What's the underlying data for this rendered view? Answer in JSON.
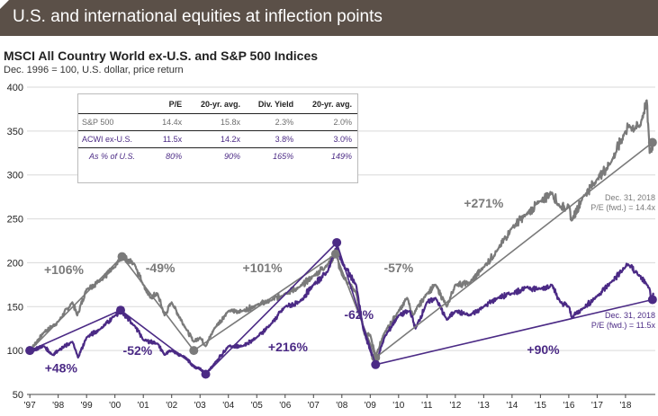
{
  "header": {
    "title": "U.S. and international equities at inflection points"
  },
  "chart_data": {
    "type": "line",
    "title": "MSCI All Country World ex-U.S. and S&P 500 Indices",
    "subtitle": "Dec. 1996 = 100, U.S. dollar, price return",
    "x_ticks": [
      "'97",
      "'98",
      "'99",
      "'00",
      "'01",
      "'02",
      "'03",
      "'04",
      "'05",
      "'06",
      "'07",
      "'08",
      "'09",
      "'10",
      "'11",
      "'12",
      "'13",
      "'14",
      "'15",
      "'16",
      "'17",
      "'18"
    ],
    "xlim": [
      1996.9,
      2019.05
    ],
    "ylim": [
      50,
      400
    ],
    "y_ticks": [
      50,
      100,
      150,
      200,
      250,
      300,
      350,
      400
    ],
    "grid": true,
    "colors": {
      "sp500": "#7a7a7a",
      "acwi": "#4b2a85",
      "header_bg": "#5b5048"
    },
    "series": [
      {
        "key": "sp500",
        "x": [
          1997.0,
          1997.5,
          1997.8,
          1998.0,
          1998.5,
          1998.67,
          1999.0,
          1999.5,
          2000.0,
          2000.25,
          2000.7,
          2001.0,
          2001.25,
          2001.5,
          2001.75,
          2002.0,
          2002.5,
          2002.78,
          2003.0,
          2003.2,
          2003.5,
          2004.0,
          2004.5,
          2005.0,
          2005.5,
          2006.0,
          2006.5,
          2007.0,
          2007.5,
          2007.78,
          2008.0,
          2008.5,
          2008.8,
          2009.0,
          2009.19,
          2009.5,
          2010.0,
          2010.3,
          2010.5,
          2011.0,
          2011.3,
          2011.7,
          2012.0,
          2012.5,
          2013.0,
          2013.5,
          2014.0,
          2014.5,
          2015.0,
          2015.4,
          2015.7,
          2016.0,
          2016.1,
          2016.5,
          2017.0,
          2017.5,
          2018.0,
          2018.1,
          2018.5,
          2018.75,
          2018.85,
          2019.0
        ],
        "values": [
          100,
          121,
          128,
          133,
          155,
          140,
          170,
          180,
          195,
          207,
          198,
          175,
          160,
          165,
          140,
          155,
          125,
          110,
          115,
          105,
          125,
          145,
          145,
          152,
          157,
          165,
          172,
          185,
          198,
          210,
          186,
          166,
          118,
          118,
          94,
          120,
          145,
          160,
          140,
          165,
          175,
          150,
          175,
          177,
          195,
          215,
          240,
          255,
          270,
          280,
          263,
          265,
          248,
          275,
          295,
          315,
          350,
          355,
          355,
          385,
          325,
          338
        ]
      },
      {
        "key": "acwi",
        "x": [
          1997.0,
          1997.5,
          1997.8,
          1998.0,
          1998.5,
          1998.7,
          1999.0,
          1999.5,
          2000.0,
          2000.2,
          2000.7,
          2001.0,
          2001.5,
          2001.75,
          2002.0,
          2002.5,
          2002.75,
          2003.0,
          2003.2,
          2003.5,
          2004.0,
          2004.5,
          2005.0,
          2005.5,
          2006.0,
          2006.5,
          2007.0,
          2007.5,
          2007.82,
          2008.0,
          2008.5,
          2008.75,
          2009.0,
          2009.19,
          2009.5,
          2010.0,
          2010.4,
          2010.6,
          2011.0,
          2011.3,
          2011.7,
          2012.0,
          2012.5,
          2013.0,
          2013.5,
          2014.0,
          2014.5,
          2015.0,
          2015.4,
          2015.7,
          2016.0,
          2016.1,
          2016.5,
          2017.0,
          2017.5,
          2018.0,
          2018.1,
          2018.5,
          2018.75,
          2018.95,
          2019.0
        ],
        "values": [
          100,
          105,
          95,
          100,
          110,
          92,
          115,
          125,
          140,
          145,
          128,
          112,
          108,
          95,
          100,
          92,
          82,
          80,
          72,
          85,
          105,
          105,
          115,
          130,
          150,
          155,
          175,
          190,
          218,
          200,
          175,
          125,
          100,
          84,
          115,
          140,
          145,
          125,
          155,
          160,
          135,
          145,
          140,
          150,
          160,
          165,
          172,
          170,
          175,
          155,
          150,
          138,
          148,
          162,
          178,
          195,
          198,
          185,
          175,
          160,
          163
        ]
      }
    ],
    "trend_lines": {
      "sp500": [
        [
          1997.0,
          100
        ],
        [
          2000.25,
          207
        ],
        [
          2002.78,
          100
        ],
        [
          2007.78,
          210
        ],
        [
          2009.19,
          92
        ],
        [
          2018.95,
          337
        ]
      ],
      "acwi": [
        [
          1997.0,
          100
        ],
        [
          2000.2,
          146
        ],
        [
          2003.2,
          73
        ],
        [
          2007.82,
          223
        ],
        [
          2009.19,
          84
        ],
        [
          2018.95,
          158
        ]
      ]
    },
    "annotations": [
      {
        "text": "+106%",
        "x": 1998.2,
        "y": 187,
        "series": "sp500"
      },
      {
        "text": "-49%",
        "x": 2001.6,
        "y": 189,
        "series": "sp500"
      },
      {
        "text": "+101%",
        "x": 2005.2,
        "y": 189,
        "series": "sp500"
      },
      {
        "text": "-57%",
        "x": 2010.0,
        "y": 189,
        "series": "sp500"
      },
      {
        "text": "+271%",
        "x": 2013.0,
        "y": 263,
        "series": "sp500"
      },
      {
        "text": "+48%",
        "x": 1998.1,
        "y": 75,
        "series": "acwi"
      },
      {
        "text": "-52%",
        "x": 2000.8,
        "y": 95,
        "series": "acwi"
      },
      {
        "text": "+216%",
        "x": 2006.1,
        "y": 99,
        "series": "acwi"
      },
      {
        "text": "-62%",
        "x": 2008.6,
        "y": 136,
        "series": "acwi"
      },
      {
        "text": "+90%",
        "x": 2015.1,
        "y": 96,
        "series": "acwi"
      }
    ],
    "end_labels": [
      {
        "line1": "Dec. 31, 2018",
        "line2": "P/E (fwd.) = 14.4x",
        "series": "sp500",
        "x": 2019.05,
        "y": 271
      },
      {
        "line1": "Dec. 31, 2018",
        "line2": "P/E (fwd.) = 11.5x",
        "series": "acwi",
        "x": 2019.05,
        "y": 137
      }
    ]
  },
  "table": {
    "headers": [
      "",
      "P/E",
      "20-yr. avg.",
      "Div. Yield",
      "20-yr. avg."
    ],
    "rows": [
      {
        "cells": [
          "S&P 500",
          "14.4x",
          "15.8x",
          "2.3%",
          "2.0%"
        ]
      },
      {
        "cells": [
          "ACWI ex-U.S.",
          "11.5x",
          "14.2x",
          "3.8%",
          "3.0%"
        ]
      },
      {
        "cells": [
          "As % of U.S.",
          "80%",
          "90%",
          "165%",
          "149%"
        ]
      }
    ]
  }
}
